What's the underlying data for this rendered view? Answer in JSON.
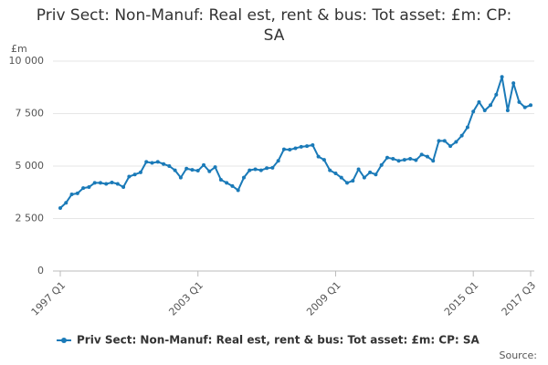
{
  "chart_data": {
    "type": "line",
    "title": "Priv Sect: Non-Manuf: Real est, rent & bus: Tot asset: £m: CP: SA",
    "y_unit_label": "£m",
    "source_label": "Source:",
    "categories": [
      "1997 Q1",
      null,
      null,
      null,
      null,
      null,
      null,
      null,
      null,
      null,
      null,
      null,
      null,
      null,
      null,
      null,
      null,
      null,
      null,
      null,
      null,
      null,
      null,
      null,
      "2003 Q1",
      null,
      null,
      null,
      null,
      null,
      null,
      null,
      null,
      null,
      null,
      null,
      null,
      null,
      null,
      null,
      null,
      null,
      null,
      null,
      null,
      null,
      null,
      null,
      "2009 Q1",
      null,
      null,
      null,
      null,
      null,
      null,
      null,
      null,
      null,
      null,
      null,
      null,
      null,
      null,
      null,
      null,
      null,
      null,
      null,
      null,
      null,
      null,
      null,
      "2015 Q1",
      null,
      null,
      null,
      null,
      null,
      null,
      null,
      null,
      null,
      "2017 Q3"
    ],
    "series": [
      {
        "name": "Priv Sect: Non-Manuf: Real est, rent & bus: Tot asset: £m: CP: SA",
        "color": "#1a7ab8",
        "values": [
          3000,
          3250,
          3650,
          3700,
          3950,
          4000,
          4200,
          4200,
          4150,
          4220,
          4150,
          4000,
          4500,
          4600,
          4700,
          5200,
          5150,
          5200,
          5100,
          5000,
          4800,
          4450,
          4880,
          4820,
          4780,
          5050,
          4750,
          4950,
          4350,
          4200,
          4050,
          3850,
          4450,
          4800,
          4850,
          4800,
          4900,
          4920,
          5250,
          5800,
          5780,
          5850,
          5920,
          5950,
          6000,
          5450,
          5300,
          4800,
          4650,
          4450,
          4200,
          4300,
          4850,
          4450,
          4700,
          4600,
          5050,
          5400,
          5350,
          5250,
          5300,
          5350,
          5280,
          5550,
          5450,
          5250,
          6200,
          6200,
          5950,
          6150,
          6450,
          6850,
          7600,
          8050,
          7650,
          7900,
          8400,
          9250,
          7650,
          8950,
          8050,
          7800,
          7900
        ]
      }
    ],
    "ylim": [
      0,
      10000
    ],
    "yticks": [
      0,
      {
        "value": 2500,
        "label": "2 500"
      },
      {
        "value": 5000,
        "label": "5 000"
      },
      {
        "value": 7500,
        "label": "7 500"
      },
      {
        "value": 10000,
        "label": "10 000"
      }
    ],
    "grid": true,
    "legend": "bottom"
  }
}
